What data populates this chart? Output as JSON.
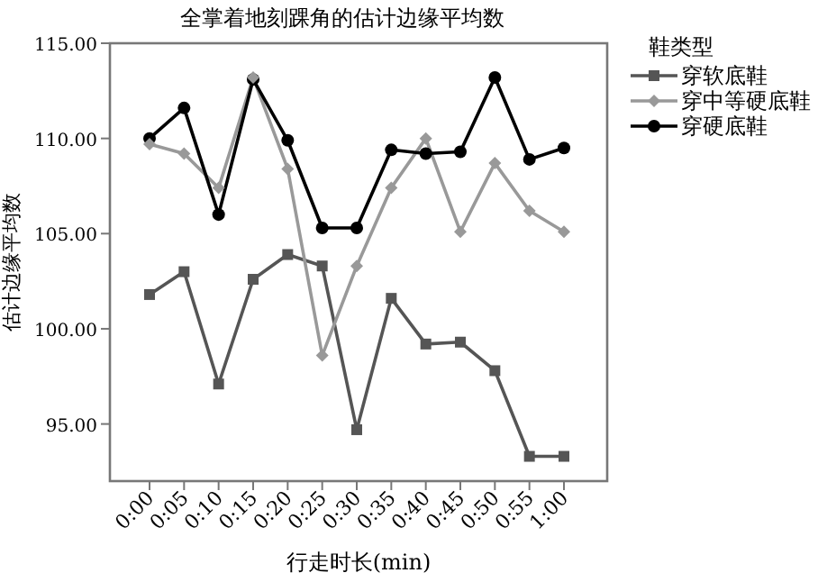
{
  "chart_data": {
    "type": "line",
    "title": "全掌着地刻踝角的估计边缘平均数",
    "xlabel": "行走时长(min)",
    "ylabel": "估计边缘平均数",
    "legend_title": "鞋类型",
    "legend": "right",
    "grid": false,
    "categories": [
      "0:00",
      "0:05",
      "0:10",
      "0:15",
      "0:20",
      "0:25",
      "0:30",
      "0:35",
      "0:40",
      "0:45",
      "0:50",
      "0:55",
      "1:00"
    ],
    "ylim": [
      92,
      115
    ],
    "yticks": [
      {
        "value": 95,
        "label": "95.00"
      },
      {
        "value": 100,
        "label": "100.00"
      },
      {
        "value": 105,
        "label": "105.00"
      },
      {
        "value": 110,
        "label": "110.00"
      },
      {
        "value": 115,
        "label": "115.00"
      }
    ],
    "series": [
      {
        "name": "穿软底鞋",
        "color": "#555555",
        "marker": "square",
        "values": [
          101.8,
          103.0,
          97.1,
          102.6,
          103.9,
          103.3,
          94.7,
          101.6,
          99.2,
          99.3,
          97.8,
          93.3,
          93.3
        ]
      },
      {
        "name": "穿中等硬底鞋",
        "color": "#999999",
        "marker": "diamond",
        "values": [
          109.7,
          109.2,
          107.4,
          113.2,
          108.4,
          98.6,
          103.3,
          107.4,
          110.0,
          105.1,
          108.7,
          106.2,
          105.1
        ]
      },
      {
        "name": "穿硬底鞋",
        "color": "#000000",
        "marker": "circle",
        "values": [
          110.0,
          111.6,
          106.0,
          113.1,
          109.9,
          105.3,
          105.3,
          109.4,
          109.2,
          109.3,
          113.2,
          108.9,
          109.5
        ]
      }
    ]
  }
}
